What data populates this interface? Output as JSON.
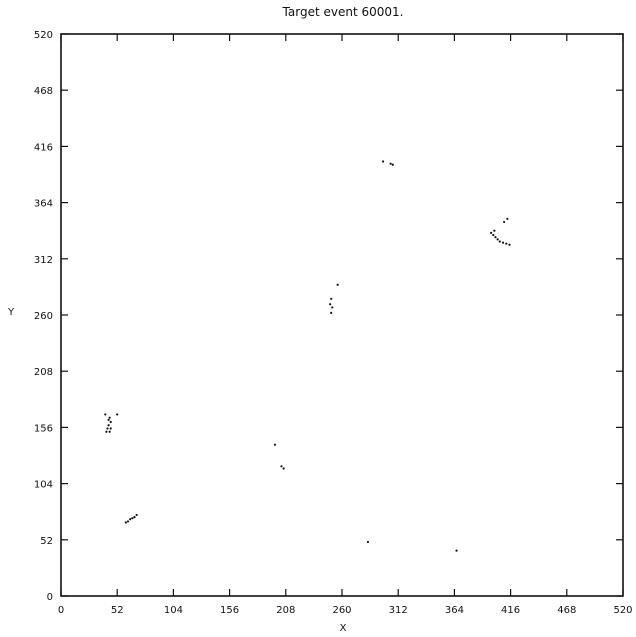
{
  "chart_data": {
    "type": "scatter",
    "title": "Target event 60001.",
    "xlabel": "X",
    "ylabel": "Y",
    "xlim": [
      0,
      520
    ],
    "ylim": [
      0,
      520
    ],
    "x_ticks": [
      "0",
      "52",
      "104",
      "156",
      "208",
      "260",
      "312",
      "364",
      "416",
      "468",
      "520"
    ],
    "y_ticks": [
      "0",
      "52",
      "104",
      "156",
      "208",
      "260",
      "312",
      "364",
      "416",
      "468",
      "520"
    ],
    "grid": false,
    "legend": "none",
    "series": [
      {
        "color": "#111111",
        "points": [
          {
            "x": 41,
            "y": 168
          },
          {
            "x": 44,
            "y": 163
          },
          {
            "x": 45,
            "y": 165
          },
          {
            "x": 46,
            "y": 161
          },
          {
            "x": 44,
            "y": 158
          },
          {
            "x": 43,
            "y": 155
          },
          {
            "x": 46,
            "y": 155
          },
          {
            "x": 45,
            "y": 152
          },
          {
            "x": 42,
            "y": 152
          },
          {
            "x": 52,
            "y": 168
          },
          {
            "x": 60,
            "y": 68
          },
          {
            "x": 62,
            "y": 69
          },
          {
            "x": 64,
            "y": 71
          },
          {
            "x": 66,
            "y": 72
          },
          {
            "x": 68,
            "y": 73
          },
          {
            "x": 70,
            "y": 75
          },
          {
            "x": 198,
            "y": 140
          },
          {
            "x": 204,
            "y": 120
          },
          {
            "x": 206,
            "y": 118
          },
          {
            "x": 249,
            "y": 270
          },
          {
            "x": 250,
            "y": 275
          },
          {
            "x": 250,
            "y": 262
          },
          {
            "x": 251,
            "y": 267
          },
          {
            "x": 256,
            "y": 288
          },
          {
            "x": 284,
            "y": 50
          },
          {
            "x": 298,
            "y": 402
          },
          {
            "x": 305,
            "y": 400
          },
          {
            "x": 307,
            "y": 399
          },
          {
            "x": 366,
            "y": 42
          },
          {
            "x": 398,
            "y": 336
          },
          {
            "x": 400,
            "y": 334
          },
          {
            "x": 402,
            "y": 332
          },
          {
            "x": 404,
            "y": 330
          },
          {
            "x": 406,
            "y": 328
          },
          {
            "x": 409,
            "y": 327
          },
          {
            "x": 412,
            "y": 326
          },
          {
            "x": 415,
            "y": 325
          },
          {
            "x": 410,
            "y": 346
          },
          {
            "x": 413,
            "y": 349
          },
          {
            "x": 401,
            "y": 338
          }
        ]
      }
    ]
  }
}
